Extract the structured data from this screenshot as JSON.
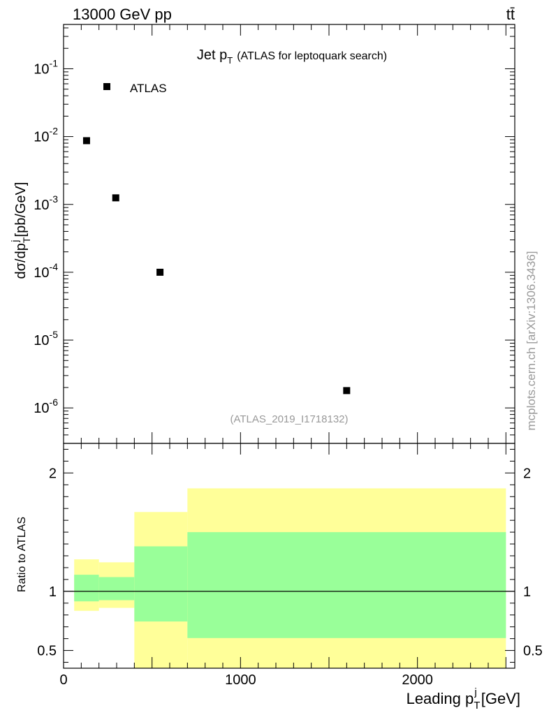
{
  "header": {
    "energy": "13000 GeV pp",
    "process": "tt̄",
    "side_label": "mcplots.cern.ch [arXiv:1306.3436]"
  },
  "chart_data": [
    {
      "type": "scatter",
      "title": "Jet p_T (ATLAS for leptoquark search)",
      "ylabel": "dσ/dp_T^j [pb/GeV]",
      "yscale": "log",
      "ylim": [
        3e-07,
        0.45
      ],
      "xlim": [
        0,
        2550
      ],
      "legend": {
        "entry": "ATLAS",
        "position": "top-left"
      },
      "annotation": "(ATLAS_2019_I1718132)",
      "y_tick_labels": [
        {
          "base": "10",
          "exp": "-1",
          "value": 0.1
        },
        {
          "base": "10",
          "exp": "-2",
          "value": 0.01
        },
        {
          "base": "10",
          "exp": "-3",
          "value": 0.001
        },
        {
          "base": "10",
          "exp": "-4",
          "value": 0.0001
        },
        {
          "base": "10",
          "exp": "-5",
          "value": 1e-05
        },
        {
          "base": "10",
          "exp": "-6",
          "value": 1e-06
        }
      ],
      "series": [
        {
          "name": "ATLAS",
          "x": [
            130,
            295,
            545,
            1600
          ],
          "y": [
            0.0087,
            0.00125,
            0.0001,
            1.8e-06
          ]
        }
      ]
    },
    {
      "type": "area",
      "ylabel": "Ratio to ATLAS",
      "xlabel": "Leading p_T^j [GeV]",
      "xlim": [
        0,
        2550
      ],
      "ylim": [
        0.35,
        2.25
      ],
      "x_tick_labels": [
        "0",
        "1000",
        "2000"
      ],
      "x_tick_values": [
        0,
        1000,
        2000
      ],
      "y_tick_labels": [
        "0.5",
        "1",
        "2"
      ],
      "y_tick_values": [
        0.5,
        1,
        2
      ],
      "reference_line": 1,
      "bands": [
        {
          "x_low": 60,
          "x_high": 200,
          "yellow_low": 0.835,
          "yellow_high": 1.27,
          "green_low": 0.915,
          "green_high": 1.14
        },
        {
          "x_low": 200,
          "x_high": 400,
          "yellow_low": 0.86,
          "yellow_high": 1.245,
          "green_low": 0.925,
          "green_high": 1.12
        },
        {
          "x_low": 400,
          "x_high": 700,
          "yellow_low": 0.35,
          "yellow_high": 1.67,
          "green_low": 0.745,
          "green_high": 1.38
        },
        {
          "x_low": 700,
          "x_high": 2500,
          "yellow_low": 0.35,
          "yellow_high": 1.87,
          "green_low": 0.605,
          "green_high": 1.5
        }
      ],
      "colors": {
        "yellow": "#ffff99",
        "green": "#99ff99"
      }
    }
  ]
}
